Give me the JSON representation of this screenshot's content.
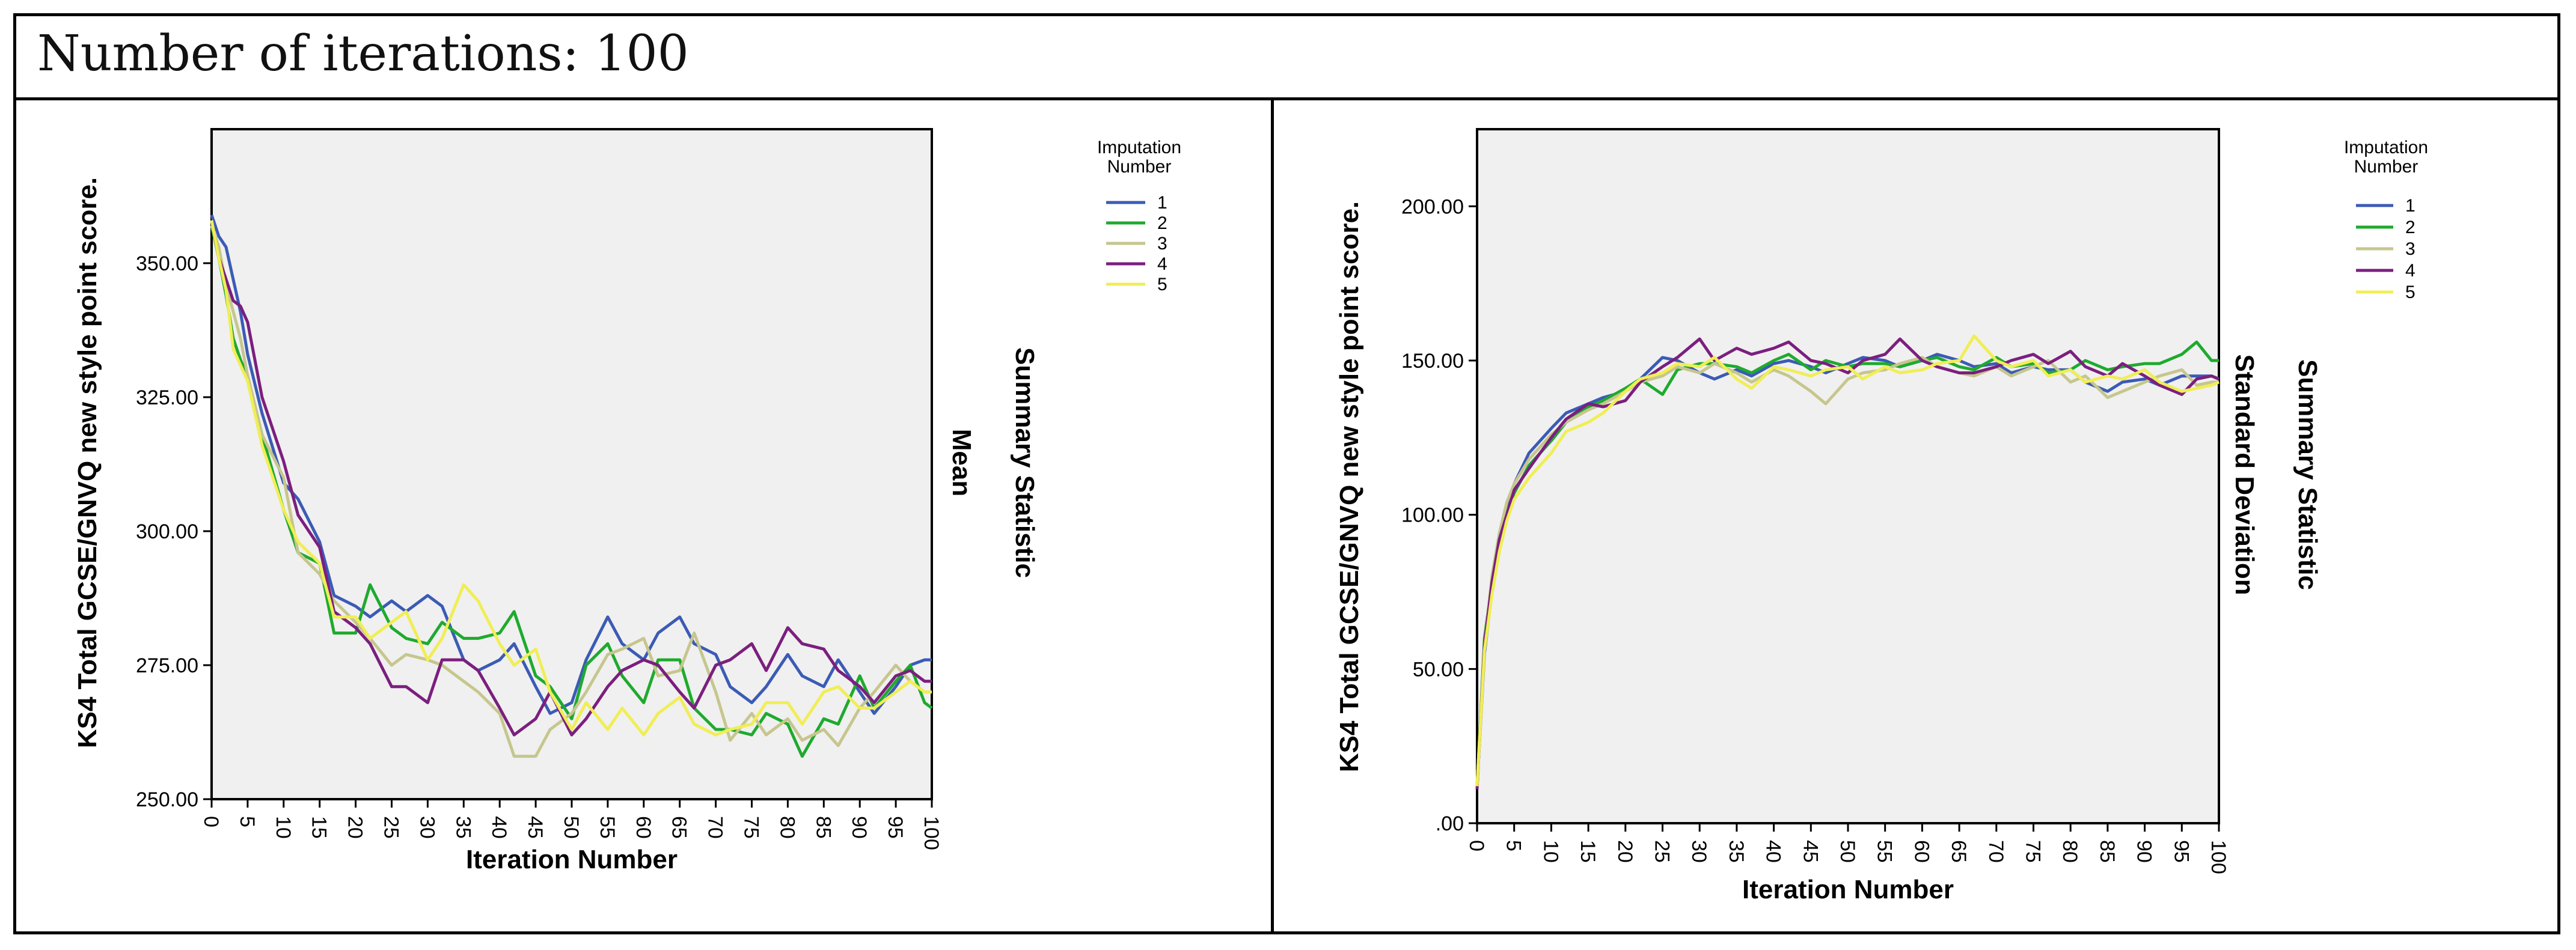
{
  "header": {
    "title": "Number of iterations: 100"
  },
  "chart_data": [
    {
      "type": "line",
      "summary_statistic": "Mean",
      "summary_statistic_label": "Summary Statistic",
      "xlabel": "Iteration Number",
      "ylabel": "KS4 Total GCSE/GNVQ new style point score.",
      "xlim": [
        0,
        100
      ],
      "ylim": [
        250,
        375
      ],
      "x_ticks": [
        0,
        5,
        10,
        15,
        20,
        25,
        30,
        35,
        40,
        45,
        50,
        55,
        60,
        65,
        70,
        75,
        80,
        85,
        90,
        95,
        100
      ],
      "x_tick_labels": [
        "0",
        "5",
        "10",
        "15",
        "20",
        "25",
        "30",
        "35",
        "40",
        "45",
        "50",
        "55",
        "60",
        "65",
        "70",
        "75",
        "80",
        "85",
        "90",
        "95",
        "100"
      ],
      "y_ticks": [
        250,
        275,
        300,
        325,
        350
      ],
      "y_tick_labels": [
        "250.00",
        "275.00",
        "300.00",
        "325.00",
        "350.00"
      ],
      "legend_title": "Imputation Number",
      "legend_position": "right",
      "x": [
        0,
        1,
        2,
        3,
        4,
        5,
        7,
        10,
        12,
        15,
        17,
        20,
        22,
        25,
        27,
        30,
        32,
        35,
        37,
        40,
        42,
        45,
        47,
        50,
        52,
        55,
        57,
        60,
        62,
        65,
        67,
        70,
        72,
        75,
        77,
        80,
        82,
        85,
        87,
        90,
        92,
        95,
        97,
        99,
        100
      ],
      "series": [
        {
          "name": "1",
          "color": "#3b5bb5",
          "values": [
            359,
            355,
            353,
            347,
            341,
            333,
            322,
            309,
            306,
            298,
            288,
            286,
            284,
            287,
            285,
            288,
            286,
            276,
            274,
            276,
            279,
            271,
            266,
            268,
            276,
            284,
            279,
            276,
            281,
            284,
            279,
            277,
            271,
            268,
            271,
            277,
            273,
            271,
            276,
            270,
            266,
            271,
            275,
            276,
            276
          ]
        },
        {
          "name": "2",
          "color": "#1faa2e",
          "values": [
            357,
            351,
            344,
            336,
            332,
            329,
            318,
            304,
            296,
            294,
            281,
            281,
            290,
            282,
            280,
            279,
            283,
            280,
            280,
            281,
            285,
            273,
            271,
            265,
            275,
            279,
            273,
            268,
            276,
            276,
            267,
            263,
            263,
            262,
            266,
            264,
            258,
            265,
            264,
            273,
            267,
            272,
            275,
            268,
            267
          ]
        },
        {
          "name": "3",
          "color": "#c6c68e",
          "values": [
            357,
            353,
            346,
            341,
            336,
            329,
            318,
            310,
            296,
            292,
            287,
            283,
            280,
            275,
            277,
            276,
            275,
            272,
            270,
            266,
            258,
            258,
            263,
            266,
            270,
            277,
            278,
            280,
            273,
            274,
            281,
            270,
            261,
            266,
            262,
            265,
            261,
            263,
            260,
            267,
            270,
            275,
            272,
            270,
            270
          ]
        },
        {
          "name": "4",
          "color": "#7b1f7e",
          "values": [
            358,
            351,
            347,
            343,
            342,
            339,
            325,
            313,
            303,
            297,
            285,
            282,
            279,
            271,
            271,
            268,
            276,
            276,
            274,
            267,
            262,
            265,
            270,
            262,
            265,
            271,
            274,
            276,
            275,
            270,
            267,
            275,
            276,
            279,
            274,
            282,
            279,
            278,
            274,
            271,
            268,
            273,
            274,
            272,
            272
          ]
        },
        {
          "name": "5",
          "color": "#f0ee55",
          "values": [
            358,
            351,
            345,
            334,
            331,
            328,
            316,
            304,
            298,
            294,
            284,
            284,
            280,
            283,
            285,
            276,
            280,
            290,
            287,
            279,
            275,
            278,
            270,
            263,
            268,
            263,
            267,
            262,
            266,
            269,
            264,
            262,
            263,
            264,
            268,
            268,
            264,
            270,
            271,
            267,
            267,
            270,
            272,
            270,
            270
          ]
        }
      ]
    },
    {
      "type": "line",
      "summary_statistic": "Standard Deviation",
      "summary_statistic_label": "Summary Statistic",
      "xlabel": "Iteration Number",
      "ylabel": "KS4 Total GCSE/GNVQ new style point score.",
      "xlim": [
        0,
        100
      ],
      "ylim": [
        0,
        225
      ],
      "x_ticks": [
        0,
        5,
        10,
        15,
        20,
        25,
        30,
        35,
        40,
        45,
        50,
        55,
        60,
        65,
        70,
        75,
        80,
        85,
        90,
        95,
        100
      ],
      "x_tick_labels": [
        "0",
        "5",
        "10",
        "15",
        "20",
        "25",
        "30",
        "35",
        "40",
        "45",
        "50",
        "55",
        "60",
        "65",
        "70",
        "75",
        "80",
        "85",
        "90",
        "95",
        "100"
      ],
      "y_ticks": [
        0,
        50,
        100,
        150,
        200
      ],
      "y_tick_labels": [
        ".00",
        "50.00",
        "100.00",
        "150.00",
        "200.00"
      ],
      "legend_title": "Imputation Number",
      "legend_position": "right",
      "x": [
        0,
        1,
        2,
        3,
        4,
        5,
        7,
        10,
        12,
        15,
        17,
        20,
        22,
        25,
        27,
        30,
        32,
        35,
        37,
        40,
        42,
        45,
        47,
        50,
        52,
        55,
        57,
        60,
        62,
        65,
        67,
        70,
        72,
        75,
        77,
        80,
        82,
        85,
        87,
        90,
        92,
        95,
        97,
        99,
        100
      ],
      "series": [
        {
          "name": "1",
          "color": "#3b5bb5",
          "values": [
            12,
            55,
            75,
            90,
            102,
            110,
            120,
            128,
            133,
            136,
            138,
            140,
            144,
            151,
            150,
            146,
            144,
            147,
            145,
            149,
            150,
            148,
            146,
            149,
            151,
            150,
            148,
            150,
            152,
            150,
            148,
            149,
            146,
            148,
            147,
            147,
            143,
            140,
            143,
            144,
            142,
            145,
            145,
            145,
            144
          ]
        },
        {
          "name": "2",
          "color": "#1faa2e",
          "values": [
            12,
            60,
            78,
            92,
            101,
            107,
            116,
            124,
            130,
            135,
            137,
            141,
            144,
            139,
            147,
            149,
            149,
            148,
            146,
            150,
            152,
            147,
            150,
            148,
            149,
            149,
            148,
            150,
            151,
            148,
            147,
            151,
            148,
            149,
            146,
            147,
            150,
            147,
            148,
            149,
            149,
            152,
            156,
            150,
            150
          ]
        },
        {
          "name": "3",
          "color": "#c6c68e",
          "values": [
            12,
            58,
            80,
            94,
            104,
            110,
            118,
            126,
            130,
            134,
            136,
            140,
            143,
            145,
            148,
            146,
            149,
            146,
            143,
            147,
            145,
            140,
            136,
            144,
            146,
            147,
            149,
            151,
            148,
            146,
            145,
            148,
            145,
            148,
            150,
            143,
            145,
            138,
            140,
            143,
            145,
            147,
            142,
            143,
            143
          ]
        },
        {
          "name": "4",
          "color": "#7b1f7e",
          "values": [
            11,
            58,
            78,
            92,
            100,
            108,
            115,
            125,
            131,
            136,
            135,
            137,
            143,
            148,
            151,
            157,
            150,
            154,
            152,
            154,
            156,
            150,
            149,
            146,
            150,
            152,
            157,
            150,
            148,
            146,
            146,
            148,
            150,
            152,
            149,
            153,
            148,
            145,
            149,
            145,
            142,
            139,
            144,
            145,
            144
          ]
        },
        {
          "name": "5",
          "color": "#f0ee55",
          "values": [
            12,
            56,
            74,
            88,
            98,
            105,
            112,
            120,
            127,
            130,
            133,
            140,
            144,
            146,
            149,
            148,
            151,
            144,
            141,
            148,
            147,
            145,
            147,
            148,
            144,
            148,
            146,
            147,
            149,
            150,
            158,
            150,
            148,
            150,
            145,
            147,
            143,
            145,
            144,
            147,
            143,
            140,
            141,
            142,
            143
          ]
        }
      ]
    }
  ]
}
